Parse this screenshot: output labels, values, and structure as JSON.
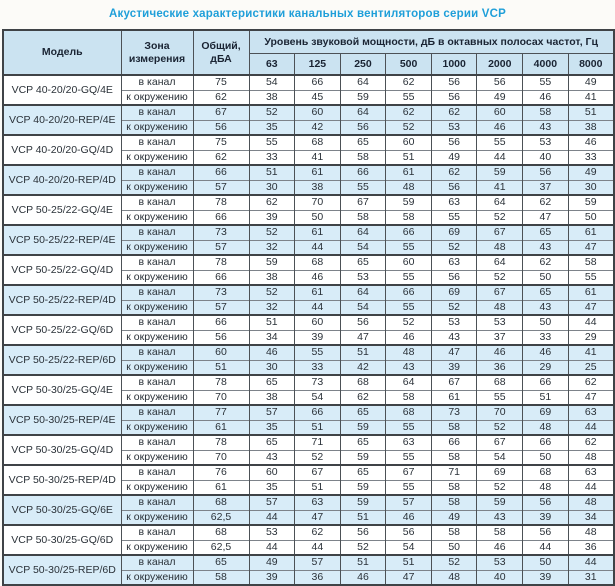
{
  "title": "Акустические характеристики канальных вентиляторов  серии VCP",
  "table": {
    "headers": {
      "model": "Модель",
      "zone": "Зона измерения",
      "total": "Общий, дБА",
      "band_group": "Уровень звуковой мощности, дБ в октавных полосах частот, Гц",
      "bands": [
        "63",
        "125",
        "250",
        "500",
        "1000",
        "2000",
        "4000",
        "8000"
      ]
    },
    "colors": {
      "title_accent": "#1f9fd9",
      "header_bg": "#cbe3f1",
      "shaded_row_bg": "#d8ecf8",
      "border_dark": "#3f4347"
    },
    "groups": [
      {
        "model": "VCP 40-20/20-GQ/4E",
        "shaded": false,
        "rows": [
          {
            "zone": "в канал",
            "total": "75",
            "bands": [
              "54",
              "66",
              "64",
              "62",
              "56",
              "56",
              "55",
              "49"
            ]
          },
          {
            "zone": "к окружению",
            "total": "62",
            "bands": [
              "38",
              "45",
              "59",
              "55",
              "56",
              "49",
              "46",
              "41"
            ]
          }
        ]
      },
      {
        "model": "VCP 40-20/20-REP/4E",
        "shaded": true,
        "rows": [
          {
            "zone": "в канал",
            "total": "67",
            "bands": [
              "52",
              "60",
              "64",
              "62",
              "62",
              "60",
              "58",
              "51"
            ]
          },
          {
            "zone": "к окружению",
            "total": "56",
            "bands": [
              "35",
              "42",
              "56",
              "52",
              "53",
              "46",
              "43",
              "38"
            ]
          }
        ]
      },
      {
        "model": "VCP 40-20/20-GQ/4D",
        "shaded": false,
        "rows": [
          {
            "zone": "в канал",
            "total": "75",
            "bands": [
              "55",
              "68",
              "65",
              "60",
              "56",
              "55",
              "53",
              "46"
            ]
          },
          {
            "zone": "к окружению",
            "total": "62",
            "bands": [
              "33",
              "41",
              "58",
              "51",
              "49",
              "44",
              "40",
              "33"
            ]
          }
        ]
      },
      {
        "model": "VCP 40-20/20-REP/4D",
        "shaded": true,
        "rows": [
          {
            "zone": "в канал",
            "total": "66",
            "bands": [
              "51",
              "61",
              "66",
              "61",
              "62",
              "59",
              "56",
              "49"
            ]
          },
          {
            "zone": "к окружению",
            "total": "57",
            "bands": [
              "30",
              "38",
              "55",
              "48",
              "56",
              "41",
              "37",
              "30"
            ]
          }
        ]
      },
      {
        "model": "VCP 50-25/22-GQ/4E",
        "shaded": false,
        "rows": [
          {
            "zone": "в канал",
            "total": "78",
            "bands": [
              "62",
              "70",
              "67",
              "59",
              "63",
              "64",
              "62",
              "59"
            ]
          },
          {
            "zone": "к окружению",
            "total": "66",
            "bands": [
              "39",
              "50",
              "58",
              "58",
              "55",
              "52",
              "47",
              "50"
            ]
          }
        ]
      },
      {
        "model": "VCP 50-25/22-REP/4E",
        "shaded": true,
        "rows": [
          {
            "zone": "в канал",
            "total": "73",
            "bands": [
              "52",
              "61",
              "64",
              "66",
              "69",
              "67",
              "65",
              "61"
            ]
          },
          {
            "zone": "к окружению",
            "total": "57",
            "bands": [
              "32",
              "44",
              "54",
              "55",
              "52",
              "48",
              "43",
              "47"
            ]
          }
        ]
      },
      {
        "model": "VCP 50-25/22-GQ/4D",
        "shaded": false,
        "rows": [
          {
            "zone": "в канал",
            "total": "78",
            "bands": [
              "59",
              "68",
              "65",
              "60",
              "63",
              "64",
              "62",
              "58"
            ]
          },
          {
            "zone": "к окружению",
            "total": "66",
            "bands": [
              "38",
              "46",
              "53",
              "55",
              "56",
              "52",
              "50",
              "55"
            ]
          }
        ]
      },
      {
        "model": "VCP 50-25/22-REP/4D",
        "shaded": true,
        "rows": [
          {
            "zone": "в канал",
            "total": "73",
            "bands": [
              "52",
              "61",
              "64",
              "66",
              "69",
              "67",
              "65",
              "61"
            ]
          },
          {
            "zone": "к окружению",
            "total": "57",
            "bands": [
              "32",
              "44",
              "54",
              "55",
              "52",
              "48",
              "43",
              "47"
            ]
          }
        ]
      },
      {
        "model": "VCP 50-25/22-GQ/6D",
        "shaded": false,
        "rows": [
          {
            "zone": "в канал",
            "total": "66",
            "bands": [
              "51",
              "60",
              "56",
              "52",
              "53",
              "53",
              "50",
              "44"
            ]
          },
          {
            "zone": "к окружению",
            "total": "56",
            "bands": [
              "34",
              "39",
              "47",
              "46",
              "43",
              "37",
              "33",
              "29"
            ]
          }
        ]
      },
      {
        "model": "VCP 50-25/22-REP/6D",
        "shaded": true,
        "rows": [
          {
            "zone": "в канал",
            "total": "60",
            "bands": [
              "46",
              "55",
              "51",
              "48",
              "47",
              "46",
              "46",
              "41"
            ]
          },
          {
            "zone": "к окружению",
            "total": "51",
            "bands": [
              "30",
              "33",
              "42",
              "43",
              "39",
              "36",
              "29",
              "25"
            ]
          }
        ]
      },
      {
        "model": "VCP 50-30/25-GQ/4E",
        "shaded": false,
        "rows": [
          {
            "zone": "в канал",
            "total": "78",
            "bands": [
              "65",
              "73",
              "68",
              "64",
              "67",
              "68",
              "66",
              "62"
            ]
          },
          {
            "zone": "к окружению",
            "total": "70",
            "bands": [
              "38",
              "54",
              "62",
              "58",
              "61",
              "55",
              "51",
              "47"
            ]
          }
        ]
      },
      {
        "model": "VCP 50-30/25-REP/4E",
        "shaded": true,
        "rows": [
          {
            "zone": "в канал",
            "total": "77",
            "bands": [
              "57",
              "66",
              "65",
              "68",
              "73",
              "70",
              "69",
              "63"
            ]
          },
          {
            "zone": "к окружению",
            "total": "61",
            "bands": [
              "35",
              "51",
              "59",
              "55",
              "58",
              "52",
              "48",
              "44"
            ]
          }
        ]
      },
      {
        "model": "VCP 50-30/25-GQ/4D",
        "shaded": false,
        "rows": [
          {
            "zone": "в канал",
            "total": "78",
            "bands": [
              "65",
              "71",
              "65",
              "63",
              "66",
              "67",
              "66",
              "62"
            ]
          },
          {
            "zone": "к окружению",
            "total": "70",
            "bands": [
              "43",
              "52",
              "59",
              "55",
              "58",
              "54",
              "50",
              "48"
            ]
          }
        ]
      },
      {
        "model": "VCP 50-30/25-REP/4D",
        "shaded": false,
        "rows": [
          {
            "zone": "в канал",
            "total": "76",
            "bands": [
              "60",
              "67",
              "65",
              "67",
              "71",
              "69",
              "68",
              "63"
            ]
          },
          {
            "zone": "к окружению",
            "total": "61",
            "bands": [
              "35",
              "51",
              "59",
              "55",
              "58",
              "52",
              "48",
              "44"
            ]
          }
        ]
      },
      {
        "model": "VCP 50-30/25-GQ/6E",
        "shaded": true,
        "rows": [
          {
            "zone": "в канал",
            "total": "68",
            "bands": [
              "57",
              "63",
              "59",
              "57",
              "58",
              "59",
              "56",
              "48"
            ]
          },
          {
            "zone": "к окружению",
            "total": "62,5",
            "bands": [
              "44",
              "47",
              "51",
              "46",
              "49",
              "43",
              "39",
              "34"
            ]
          }
        ]
      },
      {
        "model": "VCP 50-30/25-GQ/6D",
        "shaded": false,
        "rows": [
          {
            "zone": "в канал",
            "total": "68",
            "bands": [
              "53",
              "62",
              "56",
              "56",
              "58",
              "58",
              "56",
              "48"
            ]
          },
          {
            "zone": "к окружению",
            "total": "62,5",
            "bands": [
              "44",
              "44",
              "52",
              "54",
              "50",
              "46",
              "44",
              "36"
            ]
          }
        ]
      },
      {
        "model": "VCP 50-30/25-REP/6D",
        "shaded": true,
        "rows": [
          {
            "zone": "в канал",
            "total": "65",
            "bands": [
              "49",
              "57",
              "51",
              "51",
              "52",
              "53",
              "50",
              "44"
            ]
          },
          {
            "zone": "к окружению",
            "total": "58",
            "bands": [
              "39",
              "36",
              "46",
              "47",
              "48",
              "40",
              "39",
              "31"
            ]
          }
        ]
      }
    ]
  }
}
